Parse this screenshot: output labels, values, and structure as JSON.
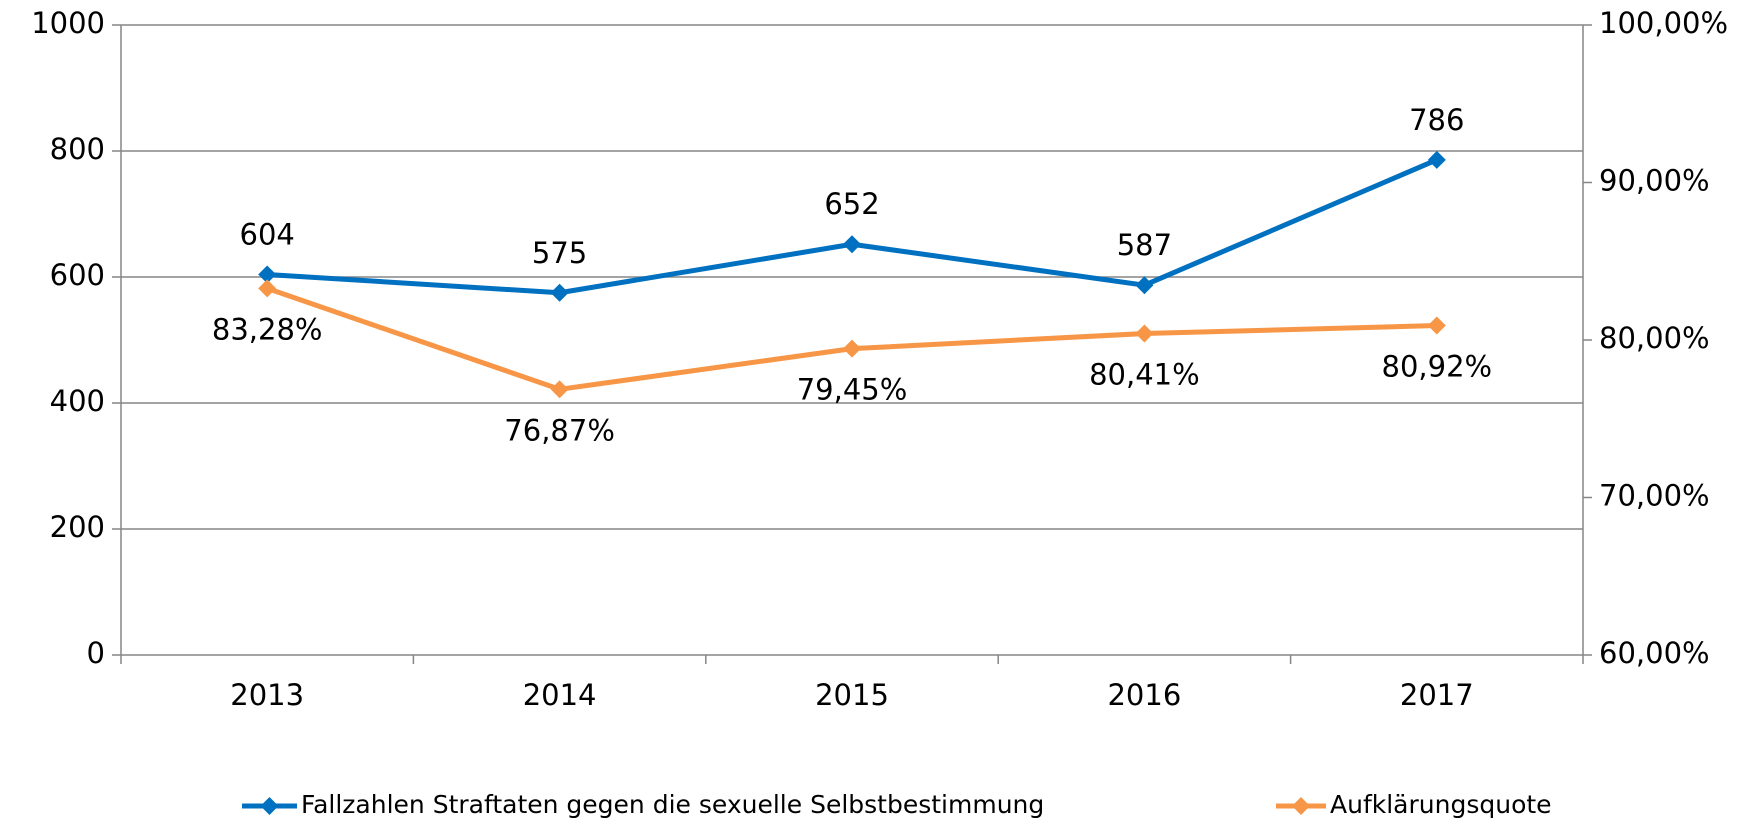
{
  "chart_data": {
    "type": "line",
    "categories": [
      "2013",
      "2014",
      "2015",
      "2016",
      "2017"
    ],
    "series": [
      {
        "name": "Fallzahlen Straftaten gegen die sexuelle Selbstbestimmung",
        "color": "#0070c0",
        "values": [
          604,
          575,
          652,
          587,
          786
        ]
      },
      {
        "name": "Aufklärungsquote",
        "color": "#f79646",
        "axis": "y2",
        "values": [
          83.28,
          76.87,
          79.45,
          80.41,
          80.92
        ],
        "value_labels": [
          "83,28%",
          "76,87%",
          "79,45%",
          "80,41%",
          "80,92%"
        ]
      }
    ],
    "ylim": [
      0,
      1000
    ],
    "yticks": [
      0,
      200,
      400,
      600,
      800,
      1000
    ],
    "y2lim": [
      60,
      100
    ],
    "y2ticks": [
      {
        "value": 60,
        "label": "60,00%"
      },
      {
        "value": 70,
        "label": "70,00%"
      },
      {
        "value": 80,
        "label": "80,00%"
      },
      {
        "value": 90,
        "label": "90,00%"
      },
      {
        "value": 100,
        "label": "100,00%"
      }
    ],
    "grid": true,
    "legend": "bottom"
  }
}
